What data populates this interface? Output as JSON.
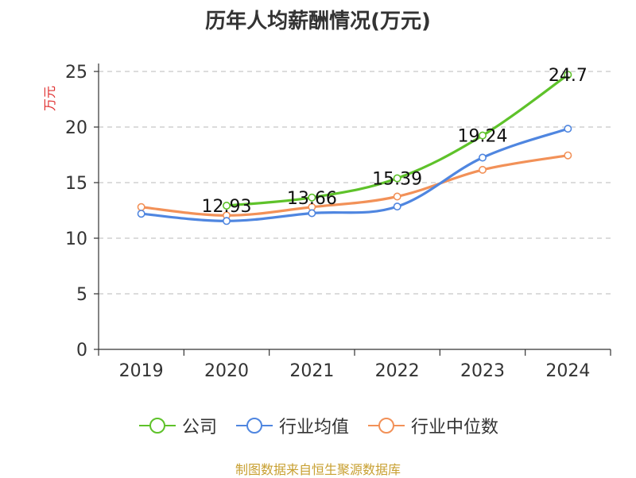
{
  "title": "历年人均薪酬情况(万元)",
  "footer": "制图数据来自恒生聚源数据库",
  "colors": {
    "company": "#5ec22a",
    "industry_avg": "#4f86e0",
    "industry_median": "#f29158",
    "grid": "#c8c8c8",
    "axis": "#333333",
    "ylabel": "#e03030"
  },
  "chart_data": {
    "type": "line",
    "title": "历年人均薪酬情况(万元)",
    "xlabel": "",
    "ylabel": "万元",
    "categories": [
      "2019",
      "2020",
      "2021",
      "2022",
      "2023",
      "2024"
    ],
    "ylim": [
      0,
      25
    ],
    "yticks": [
      0,
      5,
      10,
      15,
      20,
      25
    ],
    "grid": true,
    "legend_position": "bottom",
    "series": [
      {
        "name": "公司",
        "color": "#5ec22a",
        "values": [
          null,
          12.93,
          13.66,
          15.39,
          19.24,
          24.7
        ],
        "labels": [
          null,
          "12.93",
          "13.66",
          "15.39",
          "19.24",
          "24.7"
        ]
      },
      {
        "name": "行业均值",
        "color": "#4f86e0",
        "values": [
          12.2,
          11.55,
          12.25,
          12.85,
          17.25,
          19.85
        ]
      },
      {
        "name": "行业中位数",
        "color": "#f29158",
        "values": [
          12.8,
          12.05,
          12.8,
          13.75,
          16.15,
          17.45
        ]
      }
    ]
  }
}
